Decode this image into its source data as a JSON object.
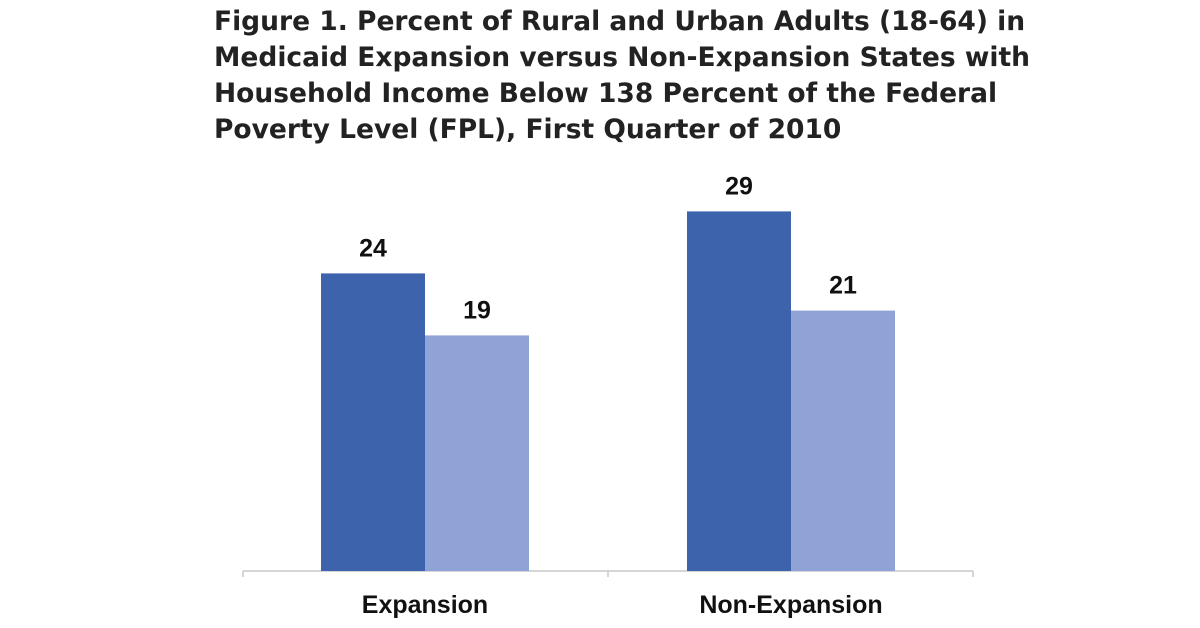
{
  "chart_data": {
    "type": "bar",
    "title_lines": [
      "Figure 1. Percent of Rural and Urban Adults (18-64) in",
      "Medicaid Expansion versus Non-Expansion States with",
      "Household Income Below 138 Percent of the Federal",
      "Poverty Level (FPL), First Quarter of 2010"
    ],
    "categories": [
      "Expansion",
      "Non-Expansion"
    ],
    "series": [
      {
        "values": [
          24,
          29
        ],
        "color": "#3c63ac"
      },
      {
        "values": [
          19,
          21
        ],
        "color": "#8fa3d6"
      }
    ],
    "ylim": [
      0,
      35
    ],
    "grid": false,
    "legend": "none"
  }
}
